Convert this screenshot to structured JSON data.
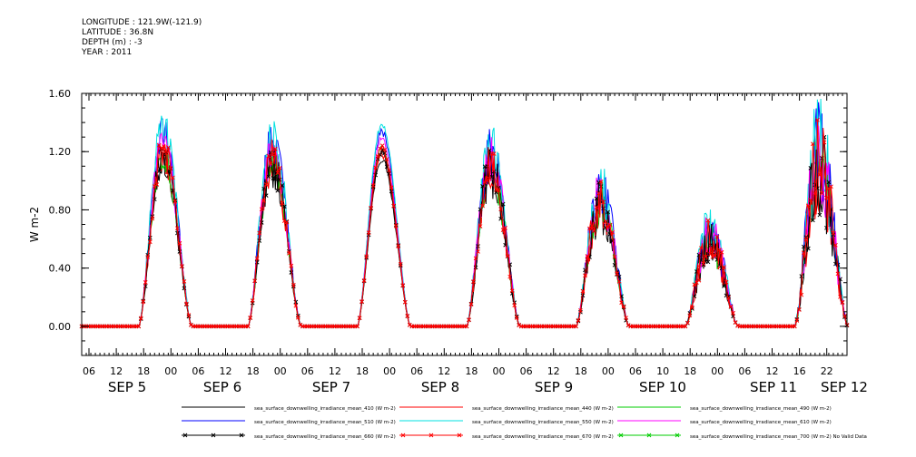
{
  "header": {
    "longitude": "LONGITUDE : 121.9W(-121.9)",
    "latitude": "LATITUDE : 36.8N",
    "depth": "DEPTH (m) : -3",
    "year": "YEAR : 2011"
  },
  "chart_data": {
    "type": "line",
    "ylabel": "W m-2",
    "ylim": [
      -0.2,
      1.6
    ],
    "yticks": [
      "1.60",
      "1.20",
      "0.80",
      "0.40",
      "0.00"
    ],
    "xtick_hours": [
      "06",
      "12",
      "18",
      "00",
      "06",
      "12",
      "18",
      "00",
      "06",
      "12",
      "18",
      "00",
      "06",
      "12",
      "18",
      "00",
      "06",
      "12",
      "18",
      "00",
      "06",
      "10",
      "18",
      "00",
      "06",
      "12",
      "16",
      "22"
    ],
    "day_labels": [
      "SEP  5",
      "SEP  6",
      "SEP  7",
      "SEP  8",
      "SEP  9",
      "SEP 10",
      "SEP 11",
      "SEP 12"
    ],
    "days": [
      {
        "label": "SEP 5",
        "peak": 1.2,
        "noisy": 0.1
      },
      {
        "label": "SEP 6",
        "peak": 1.15,
        "noisy": 0.12
      },
      {
        "label": "SEP 7",
        "peak": 1.22,
        "noisy": 0.02
      },
      {
        "label": "SEP 8",
        "peak": 1.1,
        "noisy": 0.15
      },
      {
        "label": "SEP 9",
        "peak": 0.85,
        "noisy": 0.2
      },
      {
        "label": "SEP 10",
        "peak": 0.6,
        "noisy": 0.25
      },
      {
        "label": "SEP 11",
        "peak": 1.1,
        "noisy": 0.3
      }
    ],
    "series": [
      {
        "name": "sea_surface_downwelling_irradiance_mean_410 (W m-2)",
        "color": "#000000",
        "scale": 0.94
      },
      {
        "name": "sea_surface_downwelling_irradiance_mean_440 (W m-2)",
        "color": "#ff0000",
        "scale": 0.97
      },
      {
        "name": "sea_surface_downwelling_irradiance_mean_490 (W m-2)",
        "color": "#00cc00",
        "scale": 1.0
      },
      {
        "name": "sea_surface_downwelling_irradiance_mean_510 (W m-2)",
        "color": "#0000ff",
        "scale": 1.1
      },
      {
        "name": "sea_surface_downwelling_irradiance_mean_550 (W m-2)",
        "color": "#00e0e0",
        "scale": 1.13
      },
      {
        "name": "sea_surface_downwelling_irradiance_mean_610 (W m-2)",
        "color": "#ff00ff",
        "scale": 1.05
      },
      {
        "name": "sea_surface_downwelling_irradiance_mean_660 (W m-2)",
        "color": "#000000",
        "scale": 0.98,
        "marker": "x"
      },
      {
        "name": "sea_surface_downwelling_irradiance_mean_670 (W m-2)",
        "color": "#ff0000",
        "scale": 1.0,
        "marker": "x"
      },
      {
        "name": "sea_surface_downwelling_irradiance_mean_700 (W m-2) No Valid Data",
        "color": "#00cc00",
        "scale": 0,
        "marker": "x"
      }
    ]
  }
}
